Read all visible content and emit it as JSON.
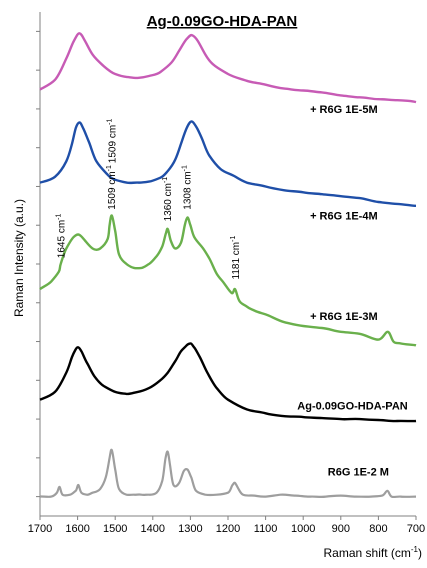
{
  "chart_data": {
    "type": "line",
    "title": "Ag-0.09GO-HDA-PAN",
    "xlabel": "Raman shift (cm",
    "xlabel_sup": "-1",
    "xlabel_close": ")",
    "ylabel": "Raman Intensity (a.u.)",
    "xlim": [
      1700,
      700
    ],
    "x_reversed": true,
    "y_ticks_labeled": false,
    "x_ticks": [
      1700,
      1600,
      1500,
      1400,
      1300,
      1200,
      1100,
      1000,
      900,
      800,
      700
    ],
    "grid": false,
    "series": [
      {
        "name": "+ R6G 1E-5M",
        "color": "#c75bb5",
        "x": [
          1700,
          1660,
          1630,
          1610,
          1595,
          1580,
          1560,
          1530,
          1500,
          1470,
          1440,
          1410,
          1380,
          1350,
          1330,
          1310,
          1295,
          1280,
          1260,
          1240,
          1200,
          1150,
          1100,
          1050,
          1000,
          950,
          900,
          850,
          800,
          750,
          700
        ],
        "y": [
          5.0,
          5.5,
          6.6,
          7.5,
          7.9,
          7.5,
          6.8,
          6.2,
          5.8,
          5.65,
          5.6,
          5.7,
          5.9,
          6.4,
          7.0,
          7.6,
          7.8,
          7.5,
          6.8,
          6.3,
          5.8,
          5.45,
          5.25,
          5.05,
          4.95,
          4.85,
          4.7,
          4.6,
          4.5,
          4.45,
          4.35
        ]
      },
      {
        "name": "+ R6G 1E-4M",
        "color": "#1f4fa8",
        "x": [
          1700,
          1660,
          1630,
          1615,
          1605,
          1595,
          1585,
          1570,
          1550,
          1520,
          1500,
          1470,
          1440,
          1410,
          1380,
          1360,
          1340,
          1325,
          1310,
          1298,
          1285,
          1270,
          1250,
          1220,
          1180,
          1150,
          1100,
          1050,
          1000,
          950,
          900,
          850,
          800,
          750,
          700
        ],
        "y": [
          0.2,
          0.5,
          1.3,
          2.2,
          3.0,
          3.3,
          3.0,
          2.3,
          1.3,
          0.6,
          0.35,
          0.2,
          0.2,
          0.25,
          0.45,
          0.8,
          1.4,
          2.2,
          3.0,
          3.35,
          3.1,
          2.5,
          1.6,
          0.9,
          0.5,
          0.2,
          0.0,
          -0.2,
          -0.3,
          -0.4,
          -0.5,
          -0.6,
          -0.8,
          -0.9,
          -1.0
        ]
      },
      {
        "name": "+ R6G 1E-3M",
        "color": "#6ab04c",
        "x": [
          1700,
          1670,
          1650,
          1645,
          1630,
          1610,
          1595,
          1580,
          1560,
          1540,
          1520,
          1515,
          1509,
          1500,
          1490,
          1470,
          1450,
          1430,
          1410,
          1390,
          1375,
          1365,
          1360,
          1352,
          1340,
          1325,
          1315,
          1308,
          1300,
          1290,
          1270,
          1250,
          1230,
          1210,
          1190,
          1181,
          1170,
          1150,
          1130,
          1100,
          1050,
          1000,
          950,
          900,
          850,
          800,
          775,
          760,
          740,
          700
        ],
        "y": [
          -5.3,
          -4.9,
          -4.4,
          -4.0,
          -3.2,
          -2.6,
          -2.5,
          -2.8,
          -3.2,
          -3.2,
          -2.7,
          -2.0,
          -1.5,
          -2.3,
          -3.5,
          -4.0,
          -4.2,
          -4.2,
          -4.0,
          -3.6,
          -3.1,
          -2.4,
          -2.2,
          -2.8,
          -3.2,
          -2.9,
          -2.0,
          -1.6,
          -2.0,
          -2.6,
          -3.1,
          -3.7,
          -4.5,
          -5.0,
          -5.5,
          -5.3,
          -5.9,
          -6.2,
          -6.4,
          -6.6,
          -7.0,
          -7.2,
          -7.3,
          -7.5,
          -7.6,
          -7.9,
          -7.5,
          -8.0,
          -8.1,
          -8.2
        ]
      },
      {
        "name": "Ag-0.09GO-HDA-PAN",
        "color": "#000000",
        "x": [
          1700,
          1660,
          1630,
          1615,
          1605,
          1598,
          1590,
          1575,
          1555,
          1530,
          1500,
          1470,
          1440,
          1410,
          1380,
          1360,
          1340,
          1325,
          1310,
          1300,
          1290,
          1275,
          1255,
          1230,
          1200,
          1150,
          1100,
          1050,
          1000,
          950,
          900,
          850,
          800,
          750,
          700
        ],
        "y": [
          -11.0,
          -10.6,
          -9.6,
          -8.8,
          -8.4,
          -8.3,
          -8.5,
          -9.1,
          -9.8,
          -10.3,
          -10.6,
          -10.7,
          -10.6,
          -10.4,
          -10.0,
          -9.6,
          -9.0,
          -8.5,
          -8.2,
          -8.1,
          -8.3,
          -8.8,
          -9.6,
          -10.4,
          -11.0,
          -11.5,
          -11.7,
          -11.85,
          -11.9,
          -11.95,
          -12.0,
          -12.0,
          -12.05,
          -12.1,
          -12.1
        ]
      },
      {
        "name": "R6G 1E-2 M",
        "color": "#9e9e9e",
        "x": [
          1700,
          1670,
          1655,
          1648,
          1640,
          1620,
          1605,
          1598,
          1590,
          1575,
          1560,
          1540,
          1525,
          1515,
          1509,
          1500,
          1490,
          1470,
          1450,
          1430,
          1410,
          1390,
          1375,
          1366,
          1360,
          1354,
          1345,
          1330,
          1318,
          1308,
          1298,
          1285,
          1260,
          1230,
          1200,
          1188,
          1181,
          1172,
          1160,
          1130,
          1100,
          1060,
          1020,
          980,
          940,
          900,
          860,
          820,
          790,
          776,
          765,
          740,
          700
        ],
        "y": [
          -16.0,
          -16.0,
          -15.8,
          -15.5,
          -15.9,
          -15.9,
          -15.7,
          -15.4,
          -15.8,
          -15.9,
          -15.8,
          -15.6,
          -15.0,
          -14.0,
          -13.6,
          -14.6,
          -15.6,
          -15.9,
          -15.9,
          -15.9,
          -15.9,
          -15.8,
          -15.2,
          -14.0,
          -13.7,
          -14.4,
          -15.4,
          -15.3,
          -14.7,
          -14.6,
          -15.0,
          -15.7,
          -15.9,
          -15.9,
          -15.8,
          -15.4,
          -15.3,
          -15.6,
          -15.9,
          -15.95,
          -16.0,
          -15.9,
          -15.95,
          -16.0,
          -16.0,
          -15.95,
          -16.0,
          -16.0,
          -15.95,
          -15.7,
          -16.0,
          -16.0,
          -16.0
        ]
      }
    ],
    "series_labels": [
      {
        "text": "+ R6G 1E-5M",
        "x": 802,
        "y": 3.8
      },
      {
        "text": "+ R6G 1E-4M",
        "x": 802,
        "y": -1.7
      },
      {
        "text": "+ R6G 1E-3M",
        "x": 802,
        "y": -6.9
      },
      {
        "text": "Ag-0.09GO-HDA-PAN",
        "x": 722,
        "y": -11.5
      },
      {
        "text": "R6G 1E-2 M",
        "x": 772,
        "y": -14.9
      }
    ],
    "annotations": [
      {
        "text": "1509 cm",
        "sup": "-1",
        "x": 1507,
        "y": 1.2
      },
      {
        "text": "1645 cm",
        "sup": "-1",
        "x": 1643,
        "y": -3.7
      },
      {
        "text": "1509 cm",
        "sup": "-1",
        "x": 1509,
        "y": -1.2
      },
      {
        "text": "1360 cm",
        "sup": "-1",
        "x": 1360,
        "y": -1.8
      },
      {
        "text": "1308 cm",
        "sup": "-1",
        "x": 1308,
        "y": -1.2
      },
      {
        "text": "1181 cm",
        "sup": "-1",
        "x": 1179,
        "y": -4.8
      }
    ]
  }
}
